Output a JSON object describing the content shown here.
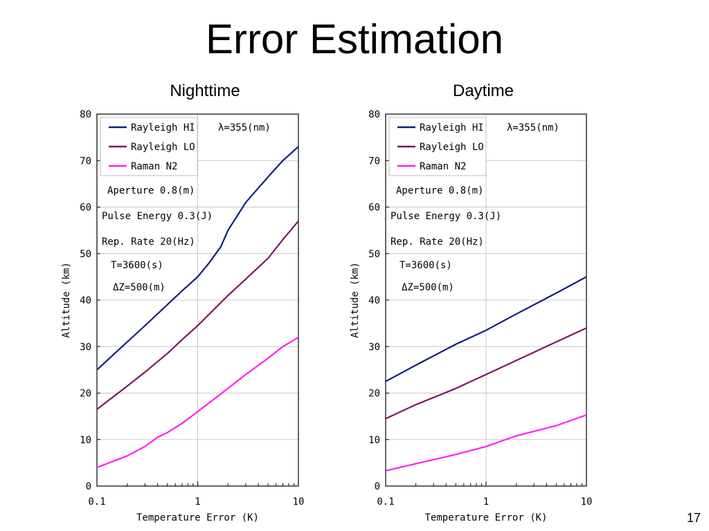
{
  "slide": {
    "title": "Error Estimation",
    "page_number": "17"
  },
  "colors": {
    "rayleigh_hi": "#0b1f7a",
    "rayleigh_lo": "#7a1566",
    "raman_n2": "#ff20ee",
    "grid": "#c8c8c8",
    "axis": "#000000"
  },
  "chart_data": [
    {
      "type": "line",
      "title": "Nighttime",
      "xlabel": "Temperature Error (K)",
      "ylabel": "Altitude (km)",
      "x_scale": "log",
      "xlim": [
        0.1,
        10
      ],
      "ylim": [
        0,
        80
      ],
      "x_ticks": [
        "0.1",
        "1",
        "10"
      ],
      "y_ticks": [
        "0",
        "10",
        "20",
        "30",
        "40",
        "50",
        "60",
        "70",
        "80"
      ],
      "grid": true,
      "legend_position": "top-left",
      "annotations": [
        "λ=355(nm)",
        "Aperture 0.8(m)",
        "Pulse Energy 0.3(J)",
        "Rep. Rate 20(Hz)",
        "T=3600(s)",
        "ΔZ=500(m)"
      ],
      "series": [
        {
          "name": "Rayleigh HI",
          "x": [
            0.1,
            0.2,
            0.3,
            0.5,
            0.7,
            1,
            1.3,
            1.7,
            2,
            3,
            5,
            7,
            10
          ],
          "y": [
            25,
            31,
            34.5,
            39,
            42,
            45,
            48,
            51.5,
            55,
            61,
            66.5,
            70,
            73
          ]
        },
        {
          "name": "Rayleigh LO",
          "x": [
            0.1,
            0.2,
            0.3,
            0.5,
            0.7,
            1,
            2,
            3,
            5,
            7,
            10
          ],
          "y": [
            16.5,
            21.5,
            24.5,
            28.5,
            31.5,
            34.5,
            41,
            44.5,
            49,
            53,
            57
          ]
        },
        {
          "name": "Raman N2",
          "x": [
            0.1,
            0.2,
            0.3,
            0.4,
            0.5,
            0.7,
            1,
            2,
            3,
            5,
            7,
            10
          ],
          "y": [
            4,
            6.5,
            8.5,
            10.5,
            11.5,
            13.5,
            16,
            21,
            24,
            27.5,
            30,
            32
          ]
        }
      ]
    },
    {
      "type": "line",
      "title": "Daytime",
      "xlabel": "Temperature Error (K)",
      "ylabel": "Altitude (km)",
      "x_scale": "log",
      "xlim": [
        0.1,
        10
      ],
      "ylim": [
        0,
        80
      ],
      "x_ticks": [
        "0.1",
        "1",
        "10"
      ],
      "y_ticks": [
        "0",
        "10",
        "20",
        "30",
        "40",
        "50",
        "60",
        "70",
        "80"
      ],
      "grid": true,
      "legend_position": "top-left",
      "annotations": [
        "λ=355(nm)",
        "Aperture 0.8(m)",
        "Pulse Energy 0.3(J)",
        "Rep. Rate 20(Hz)",
        "T=3600(s)",
        "ΔZ=500(m)"
      ],
      "series": [
        {
          "name": "Rayleigh HI",
          "x": [
            0.1,
            0.2,
            0.5,
            1,
            2,
            5,
            10
          ],
          "y": [
            22.5,
            26,
            30.5,
            33.5,
            37,
            41.5,
            45
          ]
        },
        {
          "name": "Rayleigh LO",
          "x": [
            0.1,
            0.2,
            0.5,
            1,
            2,
            5,
            10
          ],
          "y": [
            14.5,
            17.5,
            21,
            24,
            27,
            31,
            34
          ]
        },
        {
          "name": "Raman N2",
          "x": [
            0.1,
            0.2,
            0.5,
            1,
            2,
            5,
            10
          ],
          "y": [
            3.3,
            4.8,
            6.8,
            8.5,
            10.8,
            13,
            15.3
          ]
        }
      ]
    }
  ]
}
